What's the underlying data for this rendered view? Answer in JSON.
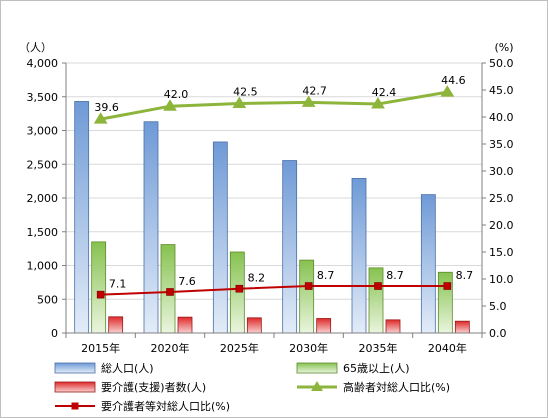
{
  "chart_data": {
    "type": "bar",
    "categories": [
      "2015年",
      "2020年",
      "2025年",
      "2030年",
      "2035年",
      "2040年"
    ],
    "y_left": {
      "unit": "（人）",
      "ylim": [
        0,
        4000
      ],
      "ticks": [
        "0",
        "500",
        "1,000",
        "1,500",
        "2,000",
        "2,500",
        "3,000",
        "3,500",
        "4,000"
      ]
    },
    "y_right": {
      "unit": "(%)",
      "ylim": [
        0,
        50
      ],
      "ticks": [
        "0.0",
        "5.0",
        "10.0",
        "15.0",
        "20.0",
        "25.0",
        "30.0",
        "35.0",
        "40.0",
        "45.0",
        "50.0"
      ]
    },
    "grid": true,
    "legend_position": "bottom",
    "bar_series": [
      {
        "name": "総人口(人)",
        "values": [
          3430,
          3130,
          2830,
          2555,
          2290,
          2050
        ],
        "color": "#8eb4e3"
      },
      {
        "name": "65歳以上(人)",
        "values": [
          1350,
          1310,
          1200,
          1080,
          965,
          900
        ],
        "color": "#9bd06a"
      },
      {
        "name": "要介護(支援)者数(人)",
        "values": [
          240,
          235,
          225,
          215,
          195,
          175
        ],
        "color": "#e03030"
      }
    ],
    "line_series": [
      {
        "name": "高齢者対総人口比(%)",
        "values": [
          39.6,
          42.0,
          42.5,
          42.7,
          42.4,
          44.6
        ],
        "labels": [
          "39.6",
          "42.0",
          "42.5",
          "42.7",
          "42.4",
          "44.6"
        ],
        "color": "#8db53c",
        "marker": "triangle"
      },
      {
        "name": "要介護者等対総人口比(%)",
        "values": [
          7.1,
          7.6,
          8.2,
          8.7,
          8.7,
          8.7
        ],
        "labels": [
          "7.1",
          "7.6",
          "8.2",
          "8.7",
          "8.7",
          "8.7"
        ],
        "color": "#c00000",
        "marker": "square"
      }
    ]
  }
}
